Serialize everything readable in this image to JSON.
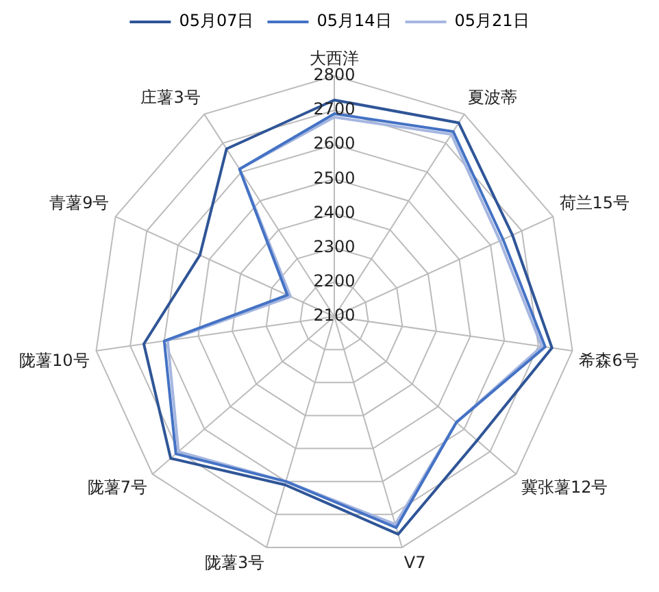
{
  "chart_data": {
    "type": "radar",
    "categories": [
      "大西洋",
      "夏波蒂",
      "荷兰15号",
      "希森6号",
      "冀张薯12号",
      "V7",
      "陇薯3号",
      "陇薯7号",
      "陇薯10号",
      "青薯9号",
      "庄薯3号"
    ],
    "series": [
      {
        "name": "05月07日",
        "color": "#2f5597",
        "values": [
          2730,
          2770,
          2670,
          2740,
          2650,
          2760,
          2610,
          2730,
          2660,
          2530,
          2680
        ]
      },
      {
        "name": "05月14日",
        "color": "#4472c4",
        "values": [
          2690,
          2740,
          2640,
          2720,
          2570,
          2740,
          2600,
          2710,
          2600,
          2250,
          2610
        ]
      },
      {
        "name": "05月21日",
        "color": "#a5b6e0",
        "values": [
          2680,
          2730,
          2630,
          2710,
          2570,
          2730,
          2600,
          2700,
          2590,
          2240,
          2610
        ]
      }
    ],
    "ylim": [
      2100,
      2800
    ],
    "yticks": [
      2100,
      2200,
      2300,
      2400,
      2500,
      2600,
      2700,
      2800
    ],
    "grid": true,
    "legend": "top",
    "marker": "none",
    "line_style": "solid"
  }
}
